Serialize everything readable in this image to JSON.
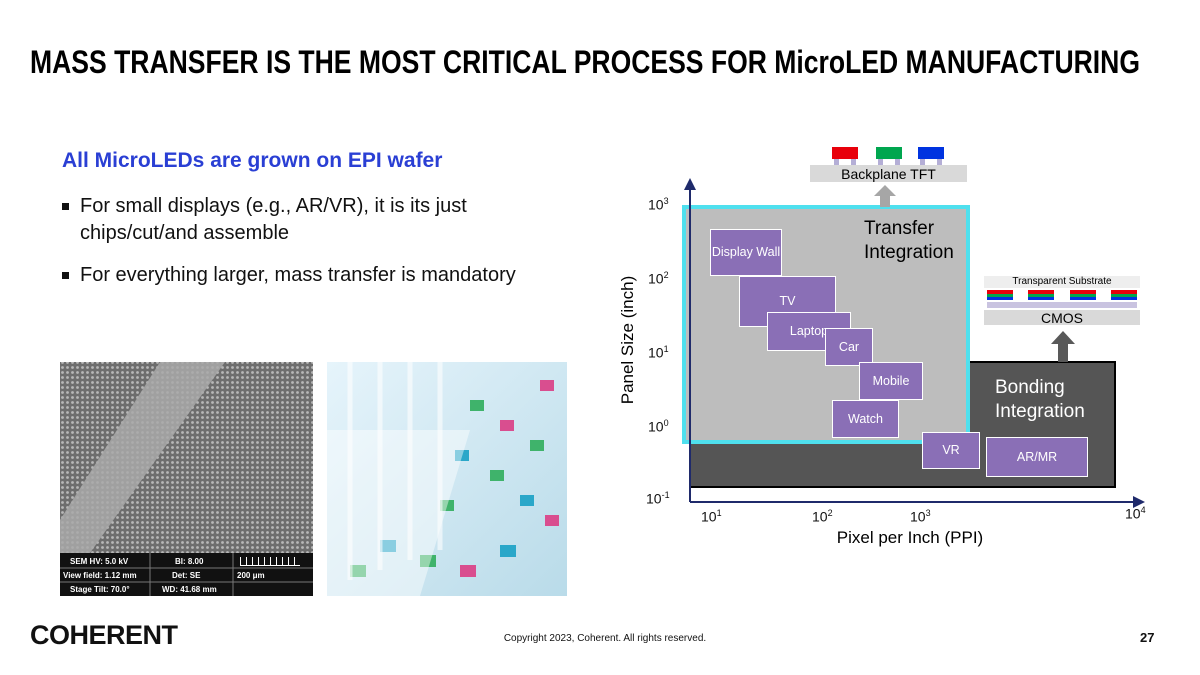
{
  "title": "MASS TRANSFER IS THE MOST CRITICAL PROCESS FOR MicroLED MANUFACTURING",
  "content": {
    "heading": "All MicroLEDs are grown on EPI wafer",
    "bullets": [
      "For small displays (e.g., AR/VR), it is its just chips/cut/and assemble",
      "For everything larger, mass transfer is mandatory"
    ]
  },
  "sem_image": {
    "info": [
      "SEM HV: 5.0 kV",
      "BI: 8.00",
      "View field: 1.12 mm",
      "Det: SE",
      "200 μm",
      "Stage Tilt: 70.0°",
      "WD: 41.68 mm"
    ]
  },
  "diagram": {
    "y_axis_label": "Panel Size (inch)",
    "x_axis_label": "Pixel per Inch (PPI)",
    "y_ticks": [
      {
        "base": "10",
        "exp": "3"
      },
      {
        "base": "10",
        "exp": "2"
      },
      {
        "base": "10",
        "exp": "1"
      },
      {
        "base": "10",
        "exp": "0"
      },
      {
        "base": "10",
        "exp": "-1"
      }
    ],
    "x_ticks": [
      {
        "base": "10",
        "exp": "1"
      },
      {
        "base": "10",
        "exp": "2"
      },
      {
        "base": "10",
        "exp": "3"
      },
      {
        "base": "10",
        "exp": "4"
      }
    ],
    "transfer_label": "Transfer Integration",
    "bonding_label": "Bonding Integration",
    "backplane_label": "Backplane TFT",
    "substrate_label": "Transparent Substrate",
    "cmos_label": "CMOS",
    "applications": [
      "Display Wall",
      "TV",
      "Laptop",
      "Car",
      "Mobile",
      "Watch",
      "VR",
      "AR/MR"
    ]
  },
  "footer": {
    "logo": "COHERENT",
    "copyright": "Copyright 2023, Coherent. All rights reserved.",
    "page_number": "27"
  }
}
